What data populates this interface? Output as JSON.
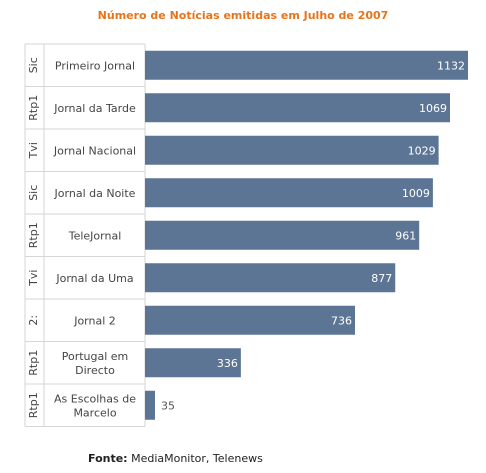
{
  "chart_data": {
    "type": "bar",
    "orientation": "horizontal",
    "title": "Número de Notícias emitidas em Julho de 2007",
    "groups": [
      "Sic",
      "Rtp1",
      "Tvi",
      "Sic",
      "Rtp1",
      "Tvi",
      "2:",
      "Rtp1",
      "Rtp1"
    ],
    "categories": [
      "Primeiro Jornal",
      "Jornal da Tarde",
      "Jornal Nacional",
      "Jornal da Noite",
      "TeleJornal",
      "Jornal da Uma",
      "Jornal 2",
      "Portugal em Directo",
      "As Escolhas de Marcelo"
    ],
    "category_lines": [
      [
        "Primeiro Jornal"
      ],
      [
        "Jornal da Tarde"
      ],
      [
        "Jornal Nacional"
      ],
      [
        "Jornal da Noite"
      ],
      [
        "TeleJornal"
      ],
      [
        "Jornal da Uma"
      ],
      [
        "Jornal 2"
      ],
      [
        "Portugal em",
        "Directo"
      ],
      [
        "As Escolhas de",
        "Marcelo"
      ]
    ],
    "values": [
      1132,
      1069,
      1029,
      1009,
      961,
      877,
      736,
      336,
      35
    ],
    "xlim": [
      0,
      1132
    ],
    "bar_color": "#5d7595",
    "label_color_inside": "#ffffff",
    "label_color_outside": "#555555"
  },
  "source": {
    "label": "Fonte:",
    "text": "MediaMonitor, Telenews"
  }
}
